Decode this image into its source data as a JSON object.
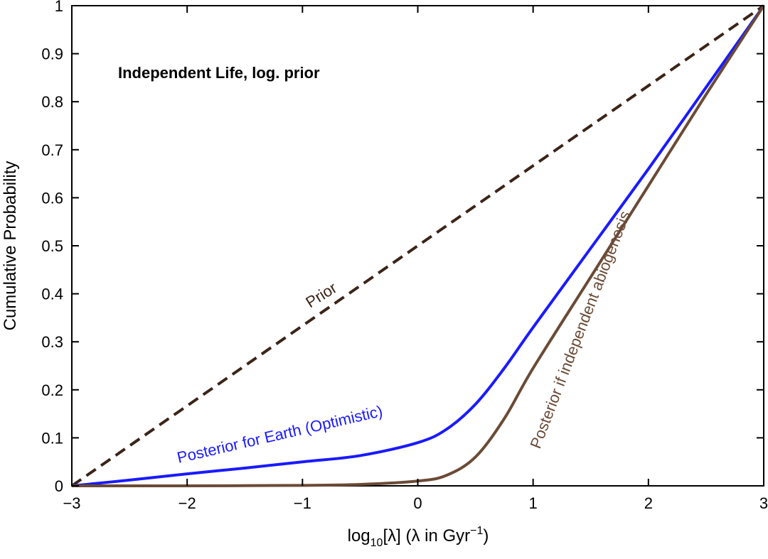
{
  "chart_data": {
    "type": "line",
    "title": "Independent Life, log. prior",
    "xlabel_parts": {
      "pre": "log",
      "sub": "10",
      "mid": "[λ]  (λ in Gyr",
      "sup": "−1",
      "post": ")"
    },
    "ylabel": "Cumulative Probability",
    "xlim": [
      -3,
      3
    ],
    "ylim": [
      0,
      1
    ],
    "xticks": [
      -3,
      -2,
      -1,
      0,
      1,
      2,
      3
    ],
    "xtick_labels": [
      "−3",
      "−2",
      "−1",
      "0",
      "1",
      "2",
      "3"
    ],
    "yticks": [
      0,
      0.1,
      0.2,
      0.3,
      0.4,
      0.5,
      0.6,
      0.7,
      0.8,
      0.9,
      1
    ],
    "ytick_labels": [
      "0",
      "0.1",
      "0.2",
      "0.3",
      "0.4",
      "0.5",
      "0.6",
      "0.7",
      "0.8",
      "0.9",
      "1"
    ],
    "grid": false,
    "series": [
      {
        "name": "Prior",
        "style": "dashed",
        "color": "#3b2418",
        "x": [
          -3,
          3
        ],
        "y": [
          0,
          1
        ]
      },
      {
        "name": "Posterior for Earth (Optimistic)",
        "style": "solid",
        "color": "#1a1aff",
        "x": [
          -3,
          -2.5,
          -2,
          -1.5,
          -1,
          -0.5,
          0,
          0.25,
          0.5,
          0.75,
          1,
          1.5,
          2,
          2.5,
          3
        ],
        "y": [
          0,
          0.012,
          0.025,
          0.037,
          0.05,
          0.063,
          0.09,
          0.118,
          0.17,
          0.245,
          0.33,
          0.495,
          0.66,
          0.83,
          1
        ]
      },
      {
        "name": "Posterior if independent abiogenesis",
        "style": "solid",
        "color": "#6b4a35",
        "x": [
          -3,
          -2,
          -1,
          -0.5,
          0,
          0.25,
          0.5,
          0.75,
          1,
          1.5,
          2,
          2.5,
          3
        ],
        "y": [
          0,
          0,
          0.001,
          0.003,
          0.01,
          0.022,
          0.06,
          0.14,
          0.245,
          0.435,
          0.625,
          0.815,
          1
        ]
      }
    ]
  }
}
